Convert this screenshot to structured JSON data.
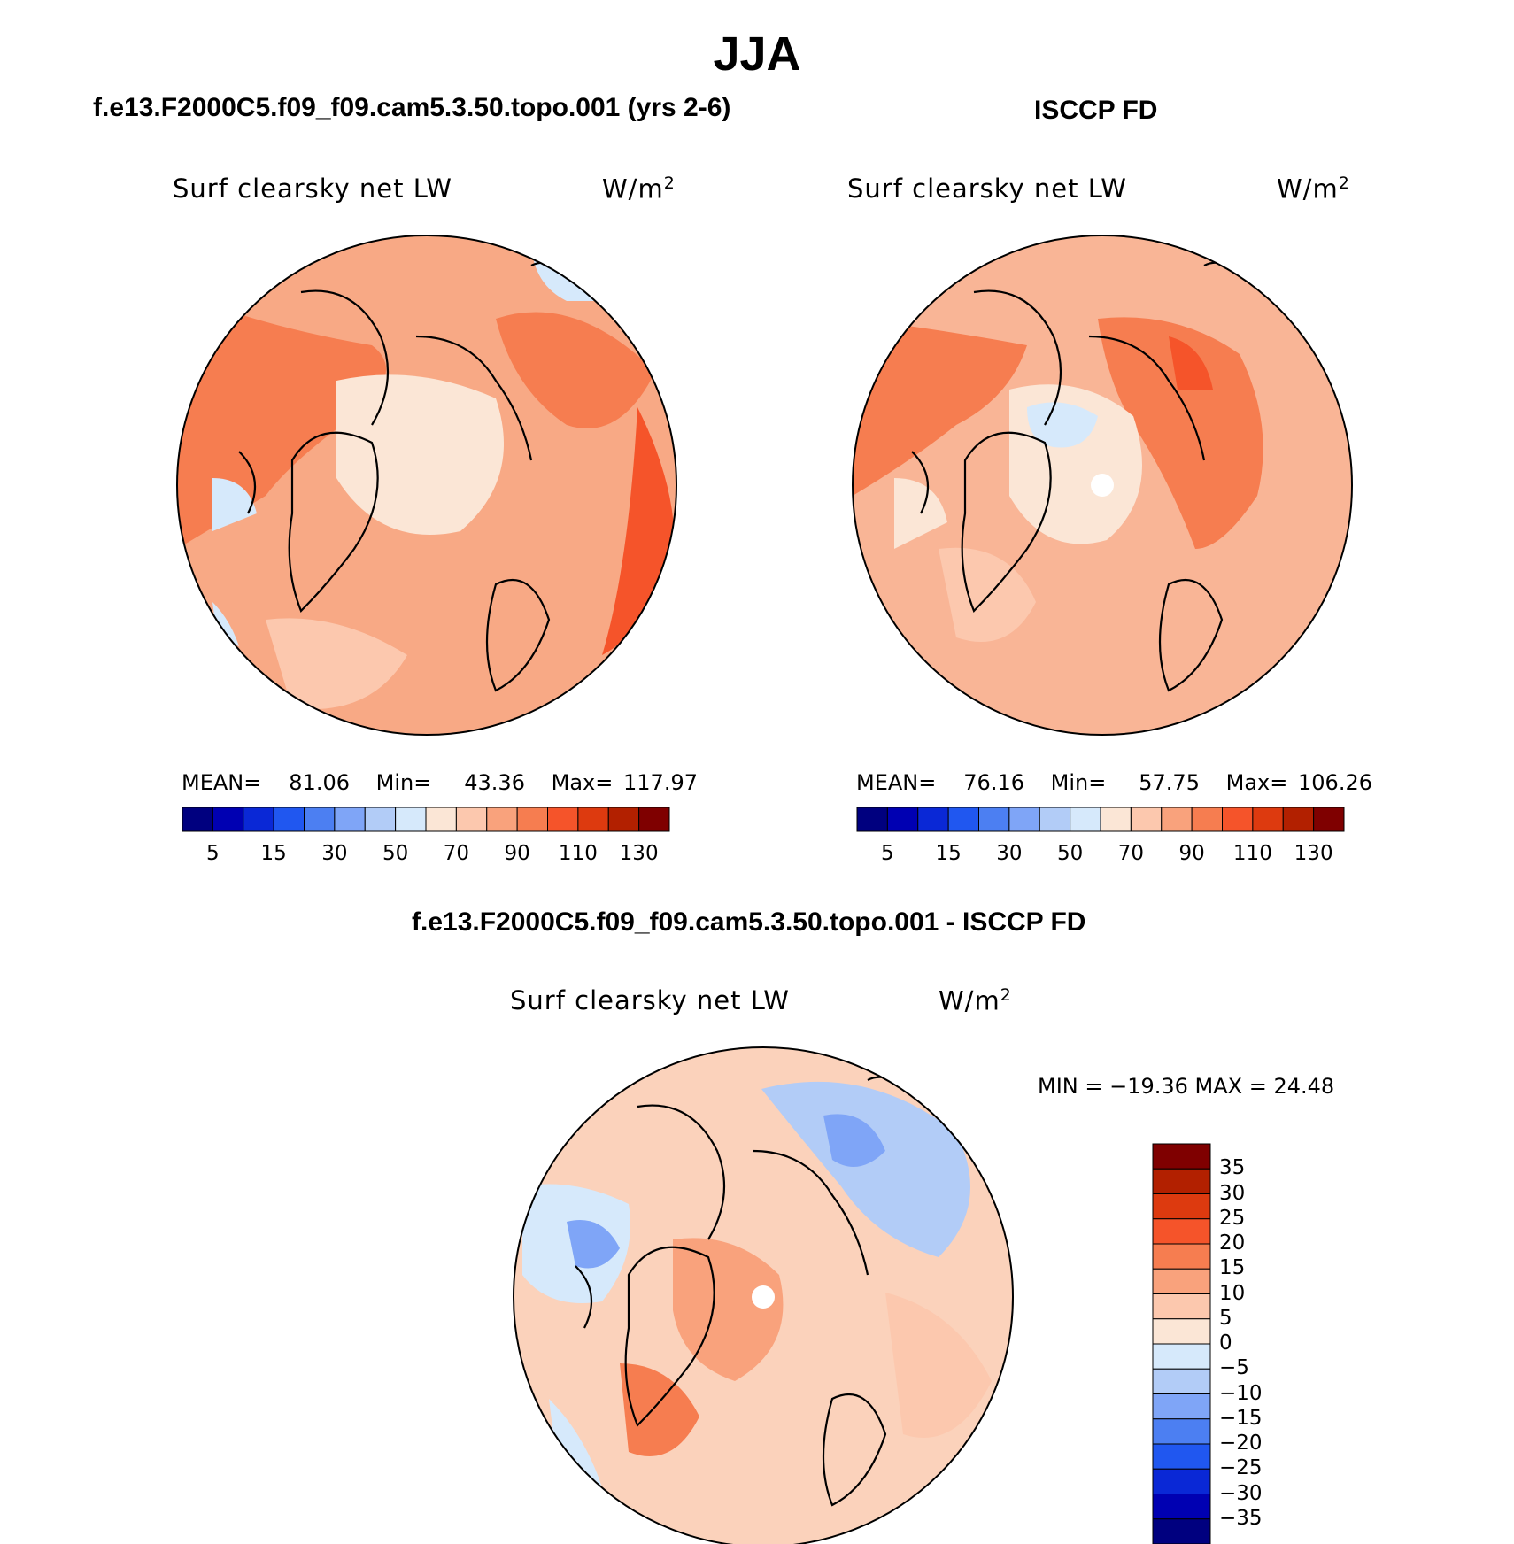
{
  "figure": {
    "season": "JJA",
    "panel_left_title": "f.e13.F2000C5.f09_f09.cam5.3.50.topo.001 (yrs 2-6)",
    "panel_right_title": "ISCCP FD",
    "diff_title": "f.e13.F2000C5.f09_f09.cam5.3.50.topo.001 - ISCCP FD"
  },
  "panels": [
    {
      "variable": "Surf clearsky net LW",
      "units": "W/m",
      "units_exp": "2",
      "mean_label": "MEAN=",
      "mean": "81.06",
      "min_label": "Min=",
      "min": "43.36",
      "max_label": "Max=",
      "max": "117.97"
    },
    {
      "variable": "Surf clearsky net LW",
      "units": "W/m",
      "units_exp": "2",
      "mean_label": "MEAN=",
      "mean": "76.16",
      "min_label": "Min=",
      "min": "57.75",
      "max_label": "Max=",
      "max": "106.26"
    },
    {
      "variable": "Surf clearsky net LW",
      "units": "W/m",
      "units_exp": "2",
      "minmax_text": "MIN = −19.36 MAX =  24.48"
    }
  ],
  "colorbar_abs": {
    "colors": [
      "#00007f",
      "#0000b2",
      "#0a28d6",
      "#2057f0",
      "#4c7ff2",
      "#7fa5f7",
      "#b2ccf7",
      "#d6e9fb",
      "#fbe6d6",
      "#fcc8ae",
      "#f9a27c",
      "#f67d50",
      "#f5542a",
      "#dd3a0f",
      "#b22000",
      "#7f0000"
    ],
    "labels": [
      "5",
      "15",
      "30",
      "50",
      "70",
      "90",
      "110",
      "130"
    ]
  },
  "colorbar_diff": {
    "colors": [
      "#00007f",
      "#0000b2",
      "#0a28d6",
      "#2057f0",
      "#4c7ff2",
      "#7fa5f7",
      "#b2ccf7",
      "#d6e9fb",
      "#fbe6d6",
      "#fcc8ae",
      "#f9a27c",
      "#f67d50",
      "#f5542a",
      "#dd3a0f",
      "#b22000",
      "#7f0000"
    ],
    "labels": [
      "35",
      "30",
      "25",
      "20",
      "15",
      "10",
      "5",
      "0",
      "−5",
      "−10",
      "−15",
      "−20",
      "−25",
      "−30",
      "−35"
    ]
  },
  "maps": {
    "projection": "north polar stereographic",
    "left_fill": "#f8a985",
    "right_fill": "#f9b596",
    "diff_fill": "#fbd2bb"
  }
}
